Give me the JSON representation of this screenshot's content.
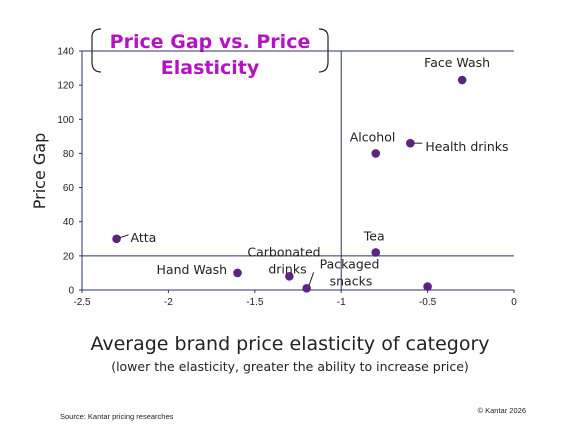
{
  "chart_data": {
    "type": "scatter",
    "title": "Price Gap vs. Price Elasticity",
    "title_lines": [
      "Price Gap vs. Price",
      "Elasticity"
    ],
    "xlabel": "Average brand price elasticity of category",
    "xlabel_note": "(lower the elasticity, greater the ability to increase price)",
    "ylabel": "Price Gap",
    "xlim": [
      -2.5,
      0
    ],
    "ylim": [
      0,
      140
    ],
    "xticks": [
      "-2.5",
      "-2",
      "-1.5",
      "-1",
      "-0.5",
      "0"
    ],
    "yticks": [
      "0",
      "20",
      "40",
      "60",
      "80",
      "100",
      "120",
      "140"
    ],
    "reference_lines": {
      "x": -1,
      "y": 20
    },
    "point_color": "#5c2480",
    "points": [
      {
        "label": "Face Wash",
        "x": -0.3,
        "y": 123
      },
      {
        "label": "Alcohol",
        "x": -0.8,
        "y": 80
      },
      {
        "label": "Health drinks",
        "x": -0.6,
        "y": 86
      },
      {
        "label": "Atta",
        "x": -2.3,
        "y": 30
      },
      {
        "label": "Tea",
        "x": -0.8,
        "y": 22
      },
      {
        "label": "Hand Wash",
        "x": -1.6,
        "y": 10
      },
      {
        "label": "Carbonated drinks",
        "x": -1.3,
        "y": 8
      },
      {
        "label": "Packaged snacks",
        "x": -1.2,
        "y": 1
      },
      {
        "label": "",
        "x": -0.5,
        "y": 2
      }
    ]
  },
  "footer": {
    "source": "Source: Kantar pricing researches",
    "copyright": "© Kantar 2026"
  }
}
